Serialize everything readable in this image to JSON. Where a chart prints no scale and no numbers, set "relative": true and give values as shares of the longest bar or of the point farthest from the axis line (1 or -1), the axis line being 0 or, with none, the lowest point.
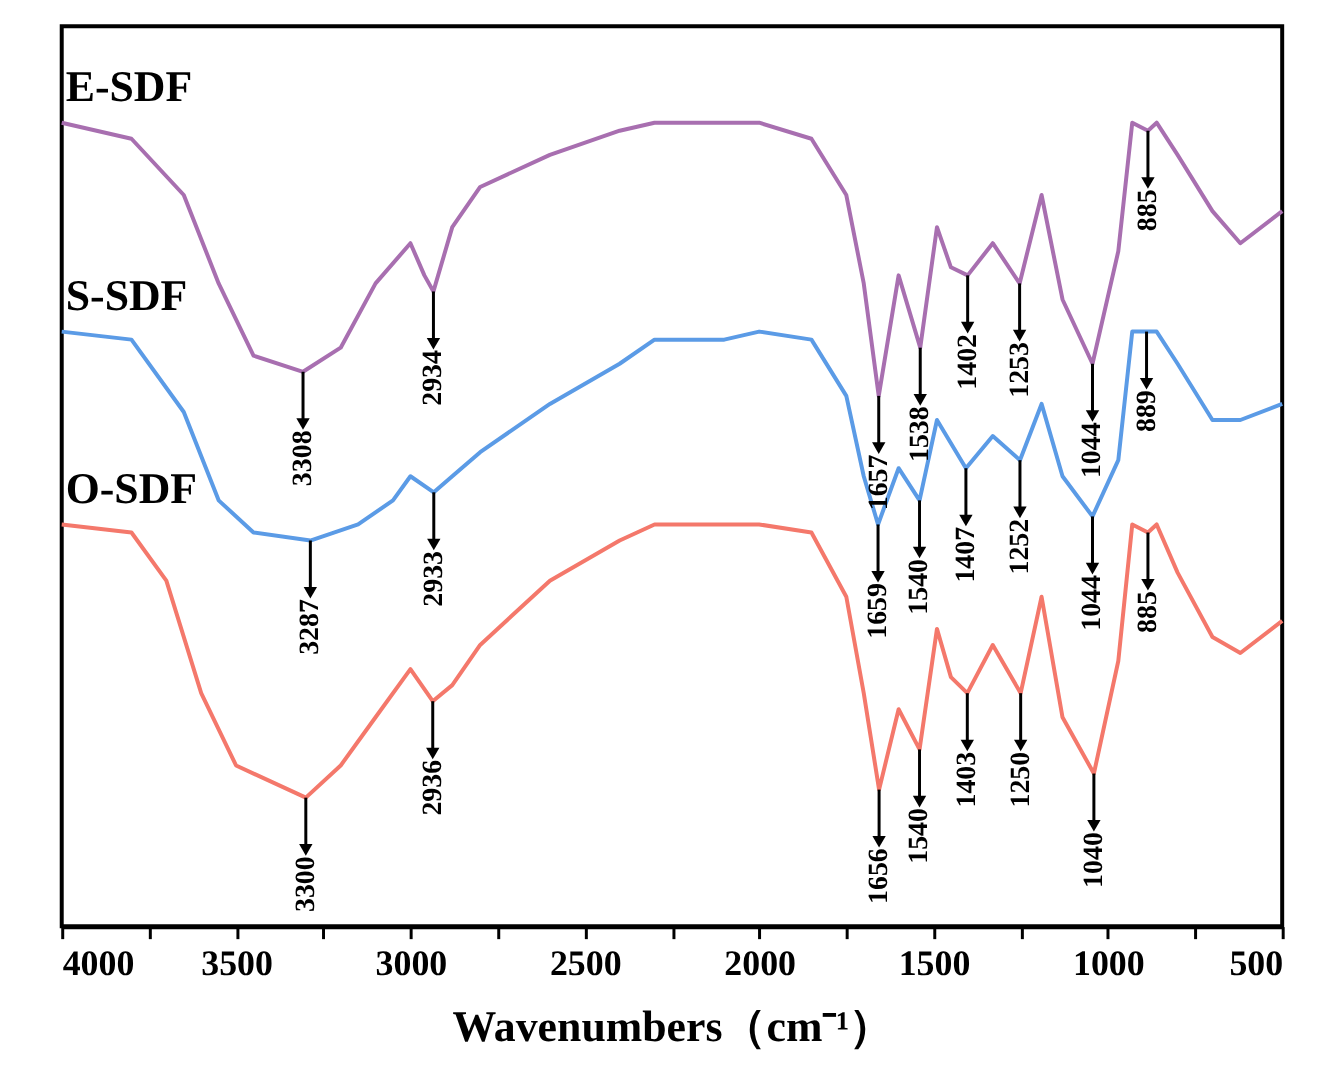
{
  "chart_data": {
    "type": "line",
    "relative": true,
    "xlabel": "Wavenumbers（cm⁻¹）",
    "xlim": [
      4000,
      500
    ],
    "xticks": [
      4000,
      {
        "value": 3750,
        "label": null
      },
      3500,
      {
        "value": 3250,
        "label": null
      },
      3000,
      {
        "value": 2750,
        "label": null
      },
      2500,
      {
        "value": 2250,
        "label": null
      },
      2000,
      {
        "value": 1750,
        "label": null
      },
      1500,
      {
        "value": 1250,
        "label": null
      },
      1000,
      {
        "value": 750,
        "label": null
      },
      500
    ],
    "line_style": "solid",
    "marker": "none",
    "series": [
      {
        "name": "E-SDF",
        "color": "#a86fb0",
        "x": [
          4000,
          3800,
          3650,
          3550,
          3450,
          3308,
          3200,
          3100,
          3000,
          2960,
          2934,
          2880,
          2800,
          2600,
          2400,
          2300,
          2000,
          1850,
          1750,
          1700,
          1657,
          1600,
          1538,
          1490,
          1450,
          1402,
          1330,
          1253,
          1190,
          1130,
          1044,
          970,
          930,
          885,
          860,
          800,
          700,
          620,
          500
        ],
        "values": [
          1.0,
          0.98,
          0.91,
          0.8,
          0.71,
          0.69,
          0.72,
          0.8,
          0.85,
          0.81,
          0.79,
          0.87,
          0.92,
          0.96,
          0.99,
          1.0,
          1.0,
          0.98,
          0.91,
          0.8,
          0.66,
          0.81,
          0.72,
          0.87,
          0.82,
          0.81,
          0.85,
          0.8,
          0.91,
          0.78,
          0.7,
          0.84,
          1.0,
          0.99,
          1.0,
          0.96,
          0.89,
          0.85,
          0.89
        ]
      },
      {
        "name": "S-SDF",
        "color": "#5b9be6",
        "x": [
          4000,
          3800,
          3650,
          3550,
          3450,
          3287,
          3150,
          3050,
          3000,
          2933,
          2880,
          2800,
          2600,
          2400,
          2300,
          2100,
          2000,
          1850,
          1750,
          1700,
          1659,
          1600,
          1540,
          1490,
          1407,
          1330,
          1252,
          1190,
          1130,
          1044,
          970,
          930,
          889,
          860,
          800,
          700,
          620,
          500
        ],
        "values": [
          0.74,
          0.73,
          0.64,
          0.53,
          0.49,
          0.48,
          0.5,
          0.53,
          0.56,
          0.54,
          0.56,
          0.59,
          0.65,
          0.7,
          0.73,
          0.73,
          0.74,
          0.73,
          0.66,
          0.56,
          0.5,
          0.57,
          0.53,
          0.63,
          0.57,
          0.61,
          0.58,
          0.65,
          0.56,
          0.51,
          0.58,
          0.74,
          0.74,
          0.74,
          0.7,
          0.63,
          0.63,
          0.65
        ]
      },
      {
        "name": "O-SDF",
        "color": "#f4786b",
        "x": [
          4000,
          3800,
          3700,
          3600,
          3500,
          3300,
          3200,
          3100,
          3000,
          2936,
          2880,
          2800,
          2600,
          2400,
          2300,
          2000,
          1850,
          1750,
          1700,
          1656,
          1600,
          1540,
          1490,
          1450,
          1403,
          1330,
          1250,
          1190,
          1130,
          1040,
          970,
          930,
          885,
          860,
          800,
          700,
          620,
          500
        ],
        "values": [
          0.5,
          0.49,
          0.43,
          0.29,
          0.2,
          0.16,
          0.2,
          0.26,
          0.32,
          0.28,
          0.3,
          0.35,
          0.43,
          0.48,
          0.5,
          0.5,
          0.49,
          0.41,
          0.29,
          0.17,
          0.27,
          0.22,
          0.37,
          0.31,
          0.29,
          0.35,
          0.29,
          0.41,
          0.26,
          0.19,
          0.33,
          0.5,
          0.49,
          0.5,
          0.44,
          0.36,
          0.34,
          0.38
        ]
      }
    ],
    "annotations": [
      {
        "text": "3308",
        "x": 3308,
        "y": 0.69
      },
      {
        "text": "2934",
        "x": 2934,
        "y": 0.79
      },
      {
        "text": "1657",
        "x": 1657,
        "y": 0.66
      },
      {
        "text": "1538",
        "x": 1538,
        "y": 0.72
      },
      {
        "text": "1402",
        "x": 1402,
        "y": 0.81
      },
      {
        "text": "1253",
        "x": 1253,
        "y": 0.8
      },
      {
        "text": "1044",
        "x": 1044,
        "y": 0.7
      },
      {
        "text": "885",
        "x": 885,
        "y": 0.99
      },
      {
        "text": "3287",
        "x": 3287,
        "y": 0.48
      },
      {
        "text": "2933",
        "x": 2933,
        "y": 0.54
      },
      {
        "text": "1659",
        "x": 1659,
        "y": 0.5
      },
      {
        "text": "1540",
        "x": 1540,
        "y": 0.53
      },
      {
        "text": "1407",
        "x": 1407,
        "y": 0.57
      },
      {
        "text": "1252",
        "x": 1252,
        "y": 0.58
      },
      {
        "text": "1044",
        "x": 1044,
        "y": 0.51
      },
      {
        "text": "889",
        "x": 889,
        "y": 0.74
      },
      {
        "text": "3300",
        "x": 3300,
        "y": 0.16
      },
      {
        "text": "2936",
        "x": 2936,
        "y": 0.28
      },
      {
        "text": "1656",
        "x": 1656,
        "y": 0.17
      },
      {
        "text": "1540",
        "x": 1540,
        "y": 0.22
      },
      {
        "text": "1403",
        "x": 1403,
        "y": 0.29
      },
      {
        "text": "1250",
        "x": 1250,
        "y": 0.29
      },
      {
        "text": "1040",
        "x": 1040,
        "y": 0.19
      },
      {
        "text": "885",
        "x": 885,
        "y": 0.49
      }
    ]
  }
}
